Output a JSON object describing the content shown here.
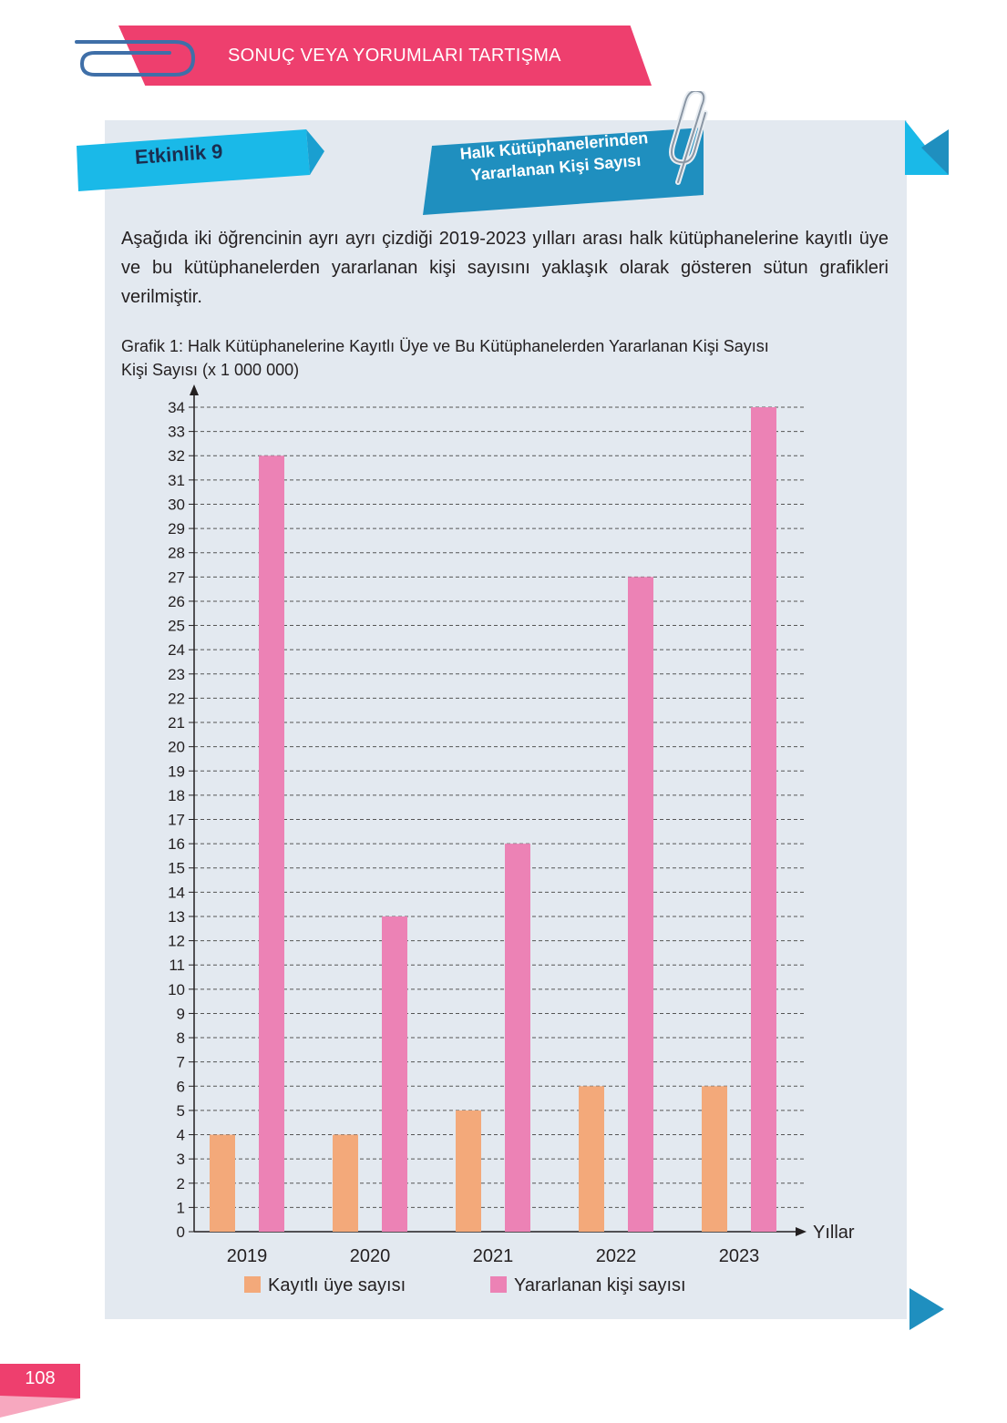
{
  "header": {
    "title": "SONUÇ VEYA YORUMLARI TARTIŞMA"
  },
  "activity": {
    "label": "Etkinlik 9",
    "title_line1": "Halk Kütüphanelerinden",
    "title_line2": "Yararlanan Kişi Sayısı"
  },
  "intro": "Aşağıda iki öğrencinin ayrı ayrı çizdiği 2019-2023 yılları arası halk kütüphanelerine kayıtlı üye ve bu kütüphanelerden yararlanan kişi sayısını yaklaşık olarak gösteren sütun grafikleri verilmiştir.",
  "page_number": "108",
  "colors": {
    "accent": "#ee3f6e",
    "blue": "#1ab9e8",
    "dark_blue": "#1f8fbf",
    "orange": "#f3a97a",
    "pink": "#ec82b5",
    "panel": "#e3e9f0"
  },
  "chart_data": {
    "type": "bar",
    "title": "Grafik 1: Halk Kütüphanelerine Kayıtlı Üye ve Bu Kütüphanelerden Yararlanan Kişi Sayısı",
    "ylabel": "Kişi Sayısı (x 1 000 000)",
    "xlabel": "Yıllar",
    "categories": [
      "2019",
      "2020",
      "2021",
      "2022",
      "2023"
    ],
    "series": [
      {
        "name": "Kayıtlı üye sayısı",
        "color": "#f3a97a",
        "values": [
          4,
          4,
          5,
          6,
          6
        ]
      },
      {
        "name": "Yararlanan kişi sayısı",
        "color": "#ec82b5",
        "values": [
          32,
          13,
          16,
          27,
          34
        ]
      }
    ],
    "ylim": [
      0,
      34
    ],
    "ytick_step": 1,
    "grid": true,
    "legend": "bottom"
  }
}
